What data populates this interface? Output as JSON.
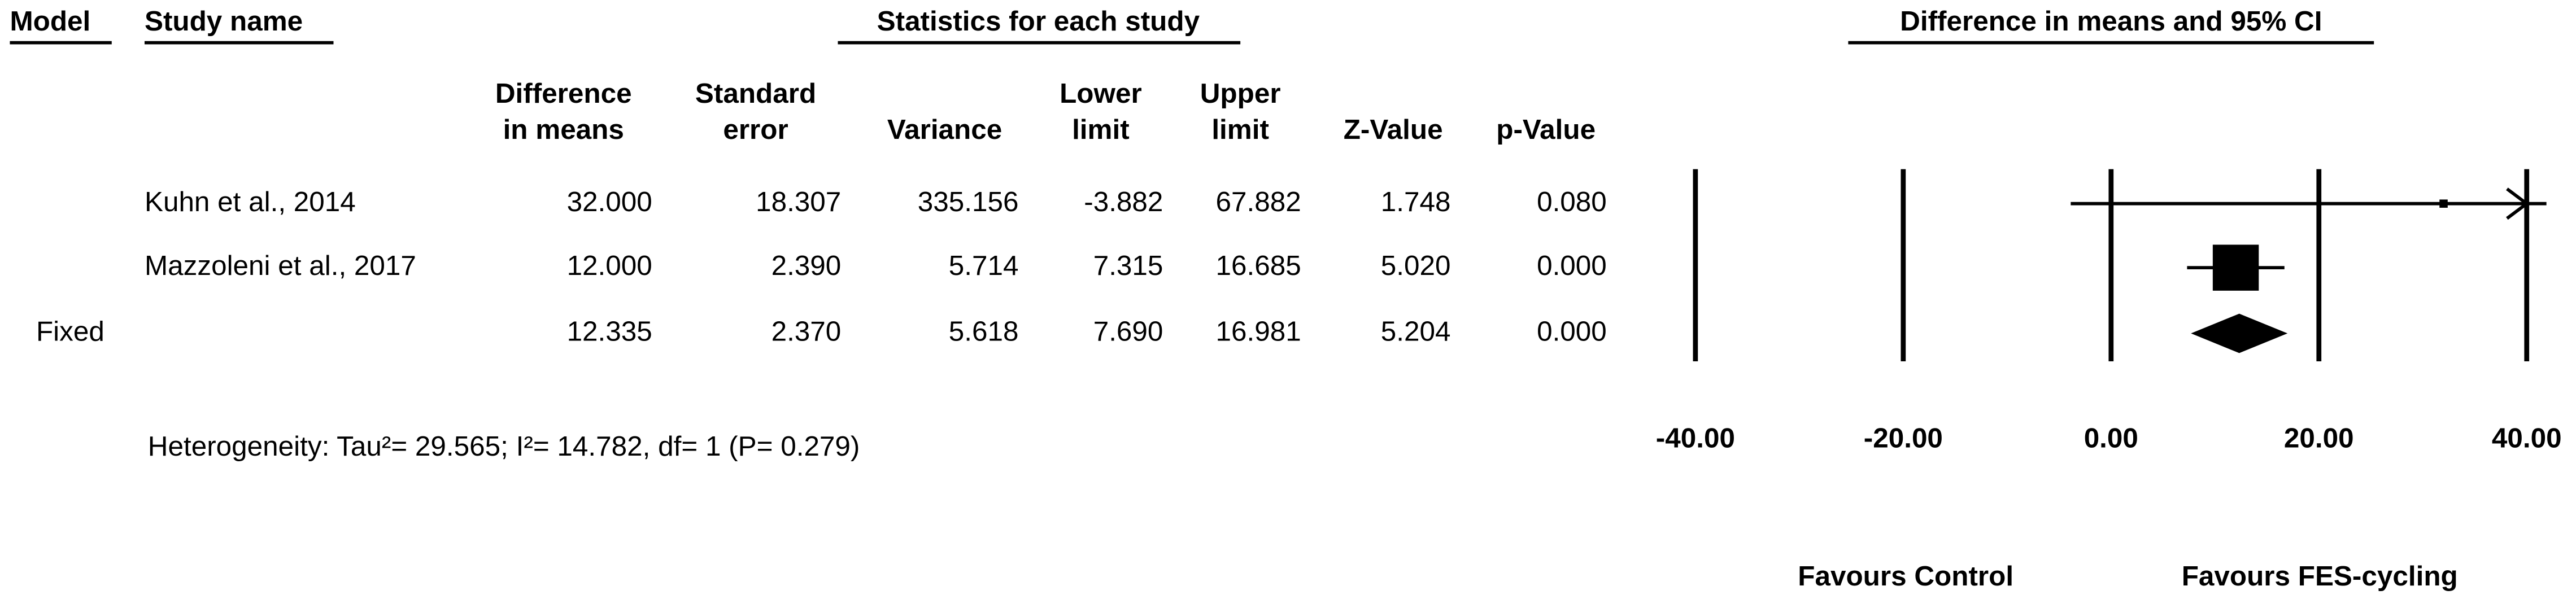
{
  "chart_data": {
    "type": "forest",
    "headers": {
      "model": "Model",
      "study": "Study name",
      "stats": "Statistics for each study",
      "plot": "Difference in means and 95% CI"
    },
    "models": [
      null,
      null,
      "Fixed"
    ],
    "studies": [
      "Kuhn et al., 2014",
      "Mazzoleni et al., 2017",
      null
    ],
    "columns": [
      {
        "header": [
          "Difference",
          "in means"
        ],
        "values": [
          32,
          12,
          12.335
        ],
        "value_labels": [
          "32.000",
          "12.000",
          "12.335"
        ]
      },
      {
        "header": [
          "Standard",
          "error"
        ],
        "values": [
          18.307,
          2.39,
          2.37
        ],
        "value_labels": [
          "18.307",
          "2.390",
          "2.370"
        ]
      },
      {
        "header": [
          "Variance"
        ],
        "values": [
          335.156,
          5.714,
          5.618
        ],
        "value_labels": [
          "335.156",
          "5.714",
          "5.618"
        ]
      },
      {
        "header": [
          "Lower",
          "limit"
        ],
        "values": [
          -3.882,
          7.315,
          7.69
        ],
        "value_labels": [
          "-3.882",
          "7.315",
          "7.690"
        ]
      },
      {
        "header": [
          "Upper",
          "limit"
        ],
        "values": [
          67.882,
          16.685,
          16.981
        ],
        "value_labels": [
          "67.882",
          "16.685",
          "16.981"
        ]
      },
      {
        "header": [
          "Z-Value"
        ],
        "values": [
          1.748,
          5.02,
          5.204
        ],
        "value_labels": [
          "1.748",
          "5.020",
          "5.204"
        ]
      },
      {
        "header": [
          "p-Value"
        ],
        "values": [
          0.08,
          0,
          0
        ],
        "value_labels": [
          "0.080",
          "0.000",
          "0.000"
        ]
      }
    ],
    "heterogeneity": "Heterogeneity: Tau²= 29.565; I²= 14.782, df= 1 (P= 0.279)",
    "xlim": [
      -40,
      40
    ],
    "xticks": [
      {
        "value": -40,
        "label": "-40.00"
      },
      {
        "value": -20,
        "label": "-20.00"
      },
      {
        "value": 0,
        "label": "0.00"
      },
      {
        "value": 20,
        "label": "20.00"
      },
      {
        "value": 40,
        "label": "40.00"
      }
    ],
    "favours": [
      "Favours Control",
      "Favours FES-cycling"
    ],
    "color": "#000000"
  }
}
